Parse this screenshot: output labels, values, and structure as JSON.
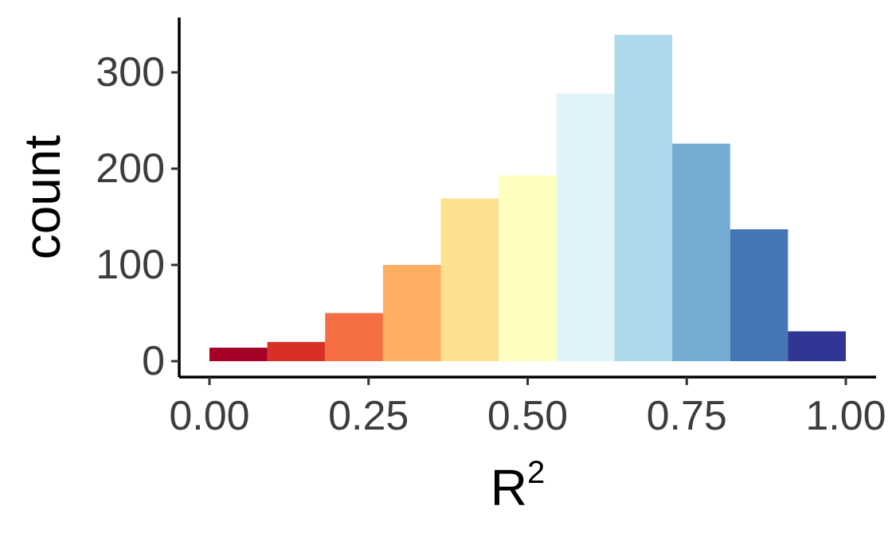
{
  "chart_data": {
    "type": "bar",
    "subtype": "histogram",
    "xlabel": "R",
    "xlabel_superscript": "2",
    "ylabel": "count",
    "xlim": [
      -0.05,
      1.05
    ],
    "ylim": [
      0,
      355
    ],
    "x_ticks": [
      0.0,
      0.25,
      0.5,
      0.75,
      1.0
    ],
    "x_tick_labels": [
      "0.00",
      "0.25",
      "0.50",
      "0.75",
      "1.00"
    ],
    "y_ticks": [
      0,
      100,
      200,
      300
    ],
    "y_tick_labels": [
      "0",
      "100",
      "200",
      "300"
    ],
    "grid": false,
    "legend": "none",
    "bins": [
      {
        "x0": 0.0,
        "x1": 0.0909,
        "count": 14,
        "color": "#A50026"
      },
      {
        "x0": 0.0909,
        "x1": 0.1818,
        "count": 20,
        "color": "#D73027"
      },
      {
        "x0": 0.1818,
        "x1": 0.2727,
        "count": 50,
        "color": "#F46D43"
      },
      {
        "x0": 0.2727,
        "x1": 0.3636,
        "count": 100,
        "color": "#FDAE61"
      },
      {
        "x0": 0.3636,
        "x1": 0.4545,
        "count": 169,
        "color": "#FEE090"
      },
      {
        "x0": 0.4545,
        "x1": 0.5455,
        "count": 193,
        "color": "#FFFFBF"
      },
      {
        "x0": 0.5455,
        "x1": 0.6364,
        "count": 278,
        "color": "#E0F3F8"
      },
      {
        "x0": 0.6364,
        "x1": 0.7273,
        "count": 339,
        "color": "#ABD9E9"
      },
      {
        "x0": 0.7273,
        "x1": 0.8182,
        "count": 226,
        "color": "#74ADD1"
      },
      {
        "x0": 0.8182,
        "x1": 0.9091,
        "count": 137,
        "color": "#4575B4"
      },
      {
        "x0": 0.9091,
        "x1": 1.0,
        "count": 31,
        "color": "#313695"
      }
    ]
  }
}
